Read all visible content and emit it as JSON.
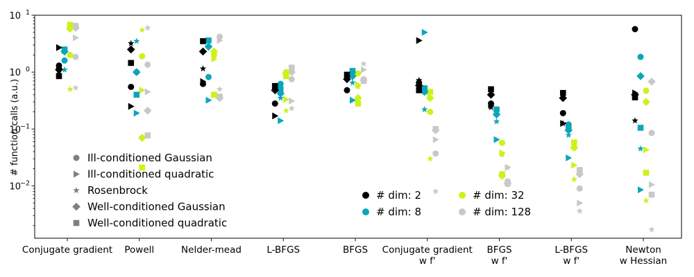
{
  "chart_data": {
    "type": "scatter",
    "title": "",
    "xlabel": "",
    "ylabel": "# function calls (a.u.)",
    "yscale": "log",
    "ylim": [
      0.0012,
      10
    ],
    "yticks": [
      {
        "value": 0.01,
        "base": "10",
        "exp": "−2"
      },
      {
        "value": 0.1,
        "base": "10",
        "exp": "−1"
      },
      {
        "value": 1,
        "base": "10",
        "exp": "0"
      },
      {
        "value": 10,
        "base": "10",
        "exp": "1"
      }
    ],
    "categories": [
      [
        "Conjugate gradient"
      ],
      [
        "Powell"
      ],
      [
        "Nelder-mead"
      ],
      [
        "L-BFGS"
      ],
      [
        "BFGS"
      ],
      [
        "Conjugate gradient",
        "w f'"
      ],
      [
        "BFGS",
        "w f'"
      ],
      [
        "L-BFGS",
        "w f'"
      ],
      [
        "Newton",
        "w Hessian"
      ]
    ],
    "problems": [
      {
        "name": "Ill-conditioned Gaussian",
        "marker": "circle"
      },
      {
        "name": "Ill-conditioned quadratic",
        "marker": "triangle-right"
      },
      {
        "name": "Rosenbrock",
        "marker": "star"
      },
      {
        "name": "Well-conditioned Gaussian",
        "marker": "diamond"
      },
      {
        "name": "Well-conditioned quadratic",
        "marker": "square"
      }
    ],
    "dimensions": [
      {
        "name": "# dim: 2",
        "color": "#000000"
      },
      {
        "name": "# dim: 8",
        "color": "#0da5bb"
      },
      {
        "name": "# dim: 32",
        "color": "#cbf21a"
      },
      {
        "name": "# dim: 128",
        "color": "#c8c8c8"
      }
    ],
    "legend_problems_position": "lower-left",
    "legend_dimensions_position": "lower-center",
    "grid": false,
    "points": [
      [
        0,
        0,
        0,
        1.3
      ],
      [
        0,
        0,
        0,
        1.15
      ],
      [
        0,
        1,
        0,
        2.7
      ],
      [
        0,
        2,
        0,
        1.05
      ],
      [
        0,
        3,
        0,
        1.1
      ],
      [
        0,
        4,
        0,
        0.85
      ],
      [
        0,
        0,
        1,
        1.6
      ],
      [
        0,
        1,
        1,
        2.4
      ],
      [
        0,
        2,
        1,
        1.1
      ],
      [
        0,
        3,
        1,
        2.3
      ],
      [
        0,
        4,
        1,
        2.5
      ],
      [
        0,
        0,
        2,
        2.0
      ],
      [
        0,
        1,
        2,
        6.2
      ],
      [
        0,
        2,
        2,
        0.5
      ],
      [
        0,
        3,
        2,
        5.8
      ],
      [
        0,
        4,
        2,
        6.8
      ],
      [
        0,
        0,
        3,
        1.85
      ],
      [
        0,
        1,
        3,
        4.0
      ],
      [
        0,
        2,
        3,
        0.53
      ],
      [
        0,
        3,
        3,
        6.0
      ],
      [
        0,
        4,
        3,
        6.5
      ],
      [
        1,
        0,
        0,
        0.55
      ],
      [
        1,
        1,
        0,
        0.25
      ],
      [
        1,
        2,
        0,
        3.2
      ],
      [
        1,
        3,
        0,
        2.5
      ],
      [
        1,
        4,
        0,
        1.45
      ],
      [
        1,
        0,
        1,
        1.0
      ],
      [
        1,
        1,
        1,
        0.19
      ],
      [
        1,
        2,
        1,
        3.5
      ],
      [
        1,
        3,
        1,
        1.0
      ],
      [
        1,
        4,
        1,
        0.4
      ],
      [
        1,
        0,
        2,
        1.9
      ],
      [
        1,
        1,
        2,
        0.48
      ],
      [
        1,
        2,
        2,
        5.5
      ],
      [
        1,
        3,
        2,
        0.07
      ],
      [
        1,
        4,
        2,
        0.021
      ],
      [
        1,
        0,
        3,
        1.35
      ],
      [
        1,
        1,
        3,
        0.45
      ],
      [
        1,
        2,
        3,
        6.0
      ],
      [
        1,
        3,
        3,
        0.21
      ],
      [
        1,
        4,
        3,
        0.077
      ],
      [
        2,
        0,
        0,
        0.62
      ],
      [
        2,
        1,
        0,
        0.68
      ],
      [
        2,
        2,
        0,
        1.15
      ],
      [
        2,
        3,
        0,
        2.3
      ],
      [
        2,
        4,
        0,
        3.5
      ],
      [
        2,
        0,
        1,
        0.82
      ],
      [
        2,
        1,
        1,
        0.32
      ],
      [
        2,
        2,
        1,
        2.9
      ],
      [
        2,
        3,
        1,
        2.8
      ],
      [
        2,
        4,
        1,
        3.6
      ],
      [
        2,
        0,
        2,
        2.0
      ],
      [
        2,
        1,
        2,
        1.7
      ],
      [
        2,
        2,
        2,
        0.4
      ],
      [
        2,
        3,
        2,
        2.3
      ],
      [
        2,
        4,
        2,
        0.4
      ],
      [
        2,
        0,
        3,
        4.2
      ],
      [
        2,
        1,
        3,
        3.6
      ],
      [
        2,
        2,
        3,
        0.5
      ],
      [
        2,
        3,
        3,
        0.35
      ],
      [
        2,
        4,
        3,
        0.37
      ],
      [
        3,
        0,
        0,
        0.28
      ],
      [
        3,
        1,
        0,
        0.17
      ],
      [
        3,
        2,
        0,
        0.55
      ],
      [
        3,
        3,
        0,
        0.48
      ],
      [
        3,
        4,
        0,
        0.57
      ],
      [
        3,
        0,
        1,
        0.62
      ],
      [
        3,
        1,
        1,
        0.14
      ],
      [
        3,
        2,
        1,
        0.35
      ],
      [
        3,
        3,
        1,
        0.42
      ],
      [
        3,
        4,
        1,
        0.5
      ],
      [
        3,
        0,
        2,
        1.0
      ],
      [
        3,
        1,
        2,
        0.33
      ],
      [
        3,
        2,
        2,
        0.21
      ],
      [
        3,
        3,
        2,
        0.95
      ],
      [
        3,
        4,
        2,
        0.85
      ],
      [
        3,
        0,
        3,
        0.75
      ],
      [
        3,
        1,
        3,
        0.31
      ],
      [
        3,
        2,
        3,
        0.23
      ],
      [
        3,
        3,
        3,
        1.0
      ],
      [
        3,
        4,
        3,
        1.2
      ],
      [
        4,
        0,
        0,
        0.48
      ],
      [
        4,
        1,
        0,
        0.85
      ],
      [
        4,
        2,
        0,
        0.8
      ],
      [
        4,
        3,
        0,
        0.75
      ],
      [
        4,
        4,
        0,
        0.9
      ],
      [
        4,
        0,
        1,
        1.0
      ],
      [
        4,
        1,
        1,
        0.32
      ],
      [
        4,
        2,
        1,
        0.65
      ],
      [
        4,
        3,
        1,
        0.85
      ],
      [
        4,
        4,
        1,
        1.05
      ],
      [
        4,
        0,
        2,
        0.95
      ],
      [
        4,
        1,
        2,
        0.6
      ],
      [
        4,
        2,
        2,
        0.55
      ],
      [
        4,
        3,
        2,
        0.35
      ],
      [
        4,
        4,
        2,
        0.28
      ],
      [
        4,
        0,
        3,
        0.75
      ],
      [
        4,
        1,
        3,
        1.1
      ],
      [
        4,
        2,
        3,
        1.4
      ],
      [
        4,
        3,
        3,
        0.72
      ],
      [
        4,
        4,
        3,
        0.7
      ],
      [
        5,
        0,
        0,
        0.65
      ],
      [
        5,
        1,
        0,
        3.6
      ],
      [
        5,
        2,
        0,
        0.72
      ],
      [
        5,
        3,
        0,
        0.58
      ],
      [
        5,
        4,
        0,
        0.48
      ],
      [
        5,
        0,
        1,
        0.45
      ],
      [
        5,
        1,
        1,
        5.0
      ],
      [
        5,
        2,
        1,
        0.22
      ],
      [
        5,
        3,
        1,
        0.45
      ],
      [
        5,
        4,
        1,
        0.52
      ],
      [
        5,
        0,
        2,
        0.2
      ],
      [
        5,
        1,
        2,
        0.42
      ],
      [
        5,
        2,
        2,
        0.03
      ],
      [
        5,
        3,
        2,
        0.35
      ],
      [
        5,
        4,
        2,
        0.45
      ],
      [
        5,
        0,
        3,
        0.037
      ],
      [
        5,
        1,
        3,
        0.065
      ],
      [
        5,
        2,
        3,
        0.008
      ],
      [
        5,
        3,
        3,
        0.095
      ],
      [
        5,
        4,
        3,
        0.1
      ],
      [
        6,
        0,
        0,
        0.28
      ],
      [
        6,
        1,
        0,
        0.26
      ],
      [
        6,
        2,
        0,
        0.24
      ],
      [
        6,
        3,
        0,
        0.4
      ],
      [
        6,
        4,
        0,
        0.5
      ],
      [
        6,
        0,
        1,
        0.22
      ],
      [
        6,
        1,
        1,
        0.065
      ],
      [
        6,
        2,
        1,
        0.135
      ],
      [
        6,
        3,
        1,
        0.18
      ],
      [
        6,
        4,
        1,
        0.22
      ],
      [
        6,
        0,
        2,
        0.057
      ],
      [
        6,
        1,
        2,
        0.038
      ],
      [
        6,
        2,
        2,
        0.035
      ],
      [
        6,
        3,
        2,
        0.015
      ],
      [
        6,
        4,
        2,
        0.016
      ],
      [
        6,
        0,
        3,
        0.012
      ],
      [
        6,
        1,
        3,
        0.021
      ],
      [
        6,
        2,
        3,
        0.021
      ],
      [
        6,
        3,
        3,
        0.011
      ],
      [
        6,
        4,
        3,
        0.011
      ],
      [
        7,
        0,
        0,
        0.19
      ],
      [
        7,
        1,
        0,
        0.125
      ],
      [
        7,
        2,
        0,
        0.125
      ],
      [
        7,
        3,
        0,
        0.35
      ],
      [
        7,
        4,
        0,
        0.43
      ],
      [
        7,
        0,
        1,
        0.12
      ],
      [
        7,
        1,
        1,
        0.031
      ],
      [
        7,
        2,
        1,
        0.078
      ],
      [
        7,
        3,
        1,
        0.095
      ],
      [
        7,
        4,
        1,
        0.11
      ],
      [
        7,
        0,
        2,
        0.047
      ],
      [
        7,
        1,
        2,
        0.023
      ],
      [
        7,
        2,
        2,
        0.013
      ],
      [
        7,
        3,
        2,
        0.047
      ],
      [
        7,
        4,
        2,
        0.058
      ],
      [
        7,
        0,
        3,
        0.009
      ],
      [
        7,
        1,
        3,
        0.005
      ],
      [
        7,
        2,
        3,
        0.0036
      ],
      [
        7,
        3,
        3,
        0.016
      ],
      [
        7,
        4,
        3,
        0.019
      ],
      [
        8,
        0,
        0,
        5.7
      ],
      [
        8,
        1,
        0,
        0.43
      ],
      [
        8,
        2,
        0,
        0.14
      ],
      [
        8,
        3,
        0,
        0.4
      ],
      [
        8,
        4,
        0,
        0.36
      ],
      [
        8,
        0,
        1,
        1.85
      ],
      [
        8,
        1,
        1,
        0.0085
      ],
      [
        8,
        2,
        1,
        0.045
      ],
      [
        8,
        3,
        1,
        0.85
      ],
      [
        8,
        4,
        1,
        0.105
      ],
      [
        8,
        0,
        2,
        0.47
      ],
      [
        8,
        1,
        2,
        0.043
      ],
      [
        8,
        2,
        2,
        0.0055
      ],
      [
        8,
        3,
        2,
        0.3
      ],
      [
        8,
        4,
        2,
        0.017
      ],
      [
        8,
        0,
        3,
        0.085
      ],
      [
        8,
        1,
        3,
        0.0105
      ],
      [
        8,
        2,
        3,
        0.0017
      ],
      [
        8,
        3,
        3,
        0.68
      ],
      [
        8,
        4,
        3,
        0.007
      ]
    ]
  }
}
